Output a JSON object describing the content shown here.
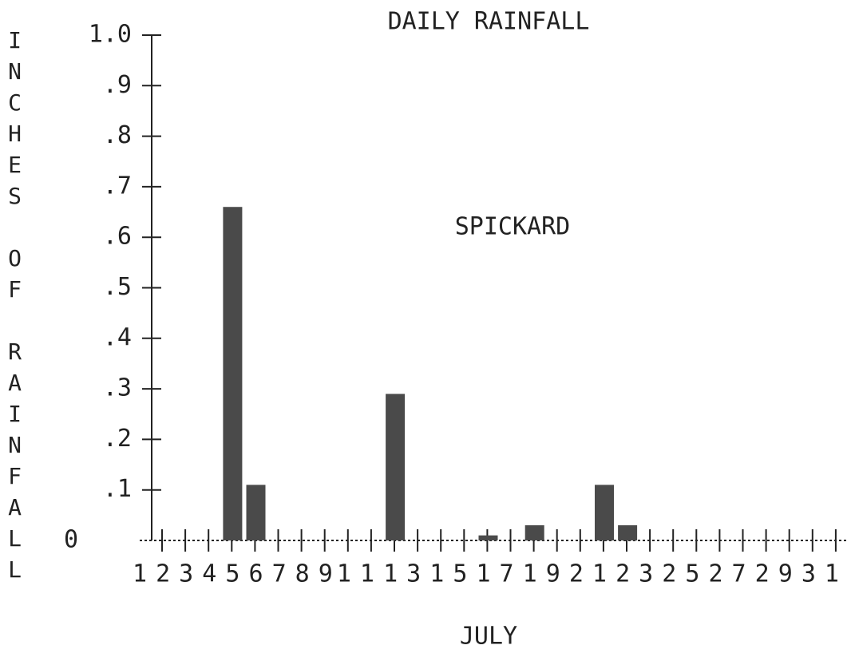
{
  "chart_data": {
    "type": "bar",
    "title": "DAILY RAINFALL",
    "annotation": "SPICKARD",
    "x_label": "JULY",
    "y_label": "INCHES OF RAINFALL",
    "color": "#4a4a4a",
    "categories": [
      "1",
      "2",
      "3",
      "4",
      "5",
      "6",
      "7",
      "8",
      "9",
      null,
      "11",
      null,
      "13",
      null,
      "15",
      null,
      "17",
      null,
      "19",
      null,
      "21",
      null,
      "23",
      null,
      "25",
      null,
      "27",
      null,
      "29",
      null,
      "31"
    ],
    "values": [
      0,
      0,
      0,
      0,
      0.66,
      0.11,
      0,
      0,
      0,
      0,
      0,
      0.29,
      0,
      0,
      0,
      0.01,
      0,
      0.03,
      0,
      0,
      0.11,
      0.03,
      0,
      0,
      0,
      0,
      0,
      0,
      0,
      0,
      0
    ],
    "ylim": [
      0,
      1.0
    ],
    "yticks": [
      0,
      {
        "value": 0.1,
        "label": ".1"
      },
      {
        "value": 0.2,
        "label": ".2"
      },
      {
        "value": 0.3,
        "label": ".3"
      },
      {
        "value": 0.4,
        "label": ".4"
      },
      {
        "value": 0.5,
        "label": ".5"
      },
      {
        "value": 0.6,
        "label": ".6"
      },
      {
        "value": 0.7,
        "label": ".7"
      },
      {
        "value": 0.8,
        "label": ".8"
      },
      {
        "value": 0.9,
        "label": ".9"
      },
      {
        "value": 1.0,
        "label": "1.0"
      }
    ]
  }
}
